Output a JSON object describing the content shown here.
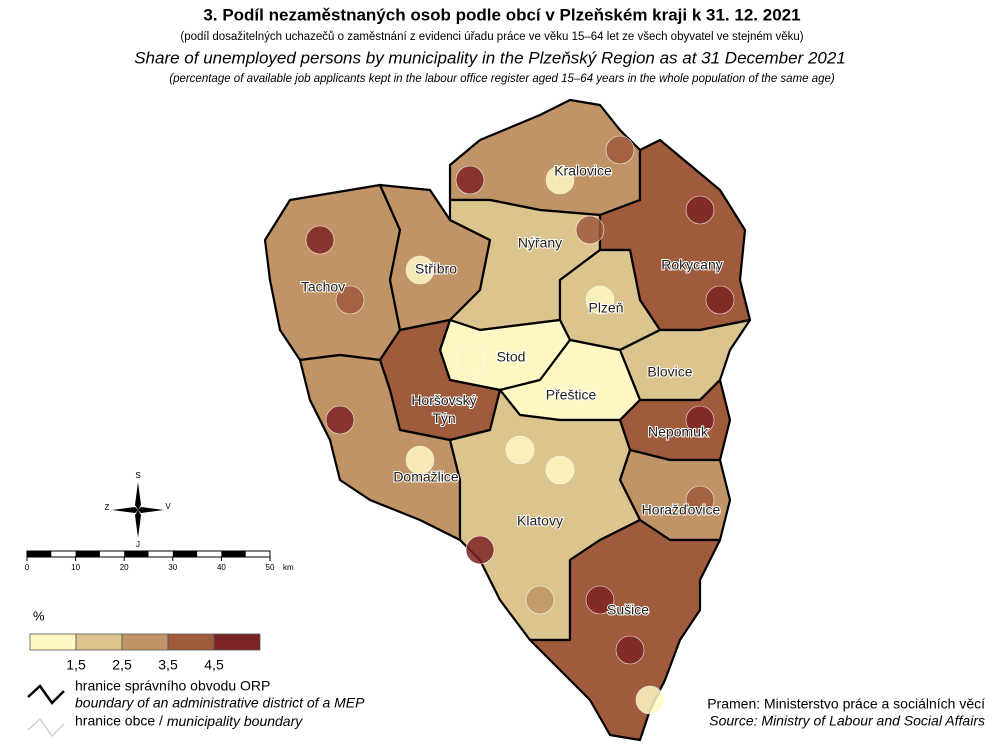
{
  "header": {
    "title": "3. Podíl nezaměstnaných osob podle obcí v Plzeňském kraji k 31. 12. 2021",
    "subtitle": "(podíl dosažitelných uchazečů o zaměstnání z evidenci úřadu práce ve věku 15–64 let ze všech obyvatel ve stejném věku)",
    "title_en": "Share of unemployed persons by municipality in the Plzeňský Region as at 31 December 2021",
    "subtitle_en": "(percentage of available job applicants kept in the labour office register aged 15–64 years in the whole population of the same age)"
  },
  "districts": [
    "Tachov",
    "Stříbro",
    "Kralovice",
    "Nýřany",
    "Rokycany",
    "Plzeň",
    "Stod",
    "Blovice",
    "Přeštice",
    "Horšovský Týn",
    "Domažlice",
    "Nepomuk",
    "Horažďovice",
    "Klatovy",
    "Sušice"
  ],
  "compass": {
    "north": "S",
    "south": "J",
    "west": "Z",
    "east": "V"
  },
  "scale": {
    "ticks": [
      0,
      10,
      20,
      30,
      40,
      50
    ],
    "unit": "km"
  },
  "legend": {
    "unit": "%",
    "colors": [
      "#fff8c4",
      "#dcc48e",
      "#c09466",
      "#a05a3c",
      "#7c2424"
    ],
    "breaks": [
      "1,5",
      "2,5",
      "3,5",
      "4,5"
    ],
    "orp_cs": "hranice správního obvodu ORP",
    "orp_en": "boundary of an administrative district of a MEP",
    "municipality_cs": "hranice obce /",
    "municipality_en": "municipality boundary"
  },
  "source": {
    "cs": "Pramen: Ministerstvo práce a sociálních věcí",
    "en": "Source: Ministry of Labour and Social Affairs"
  }
}
